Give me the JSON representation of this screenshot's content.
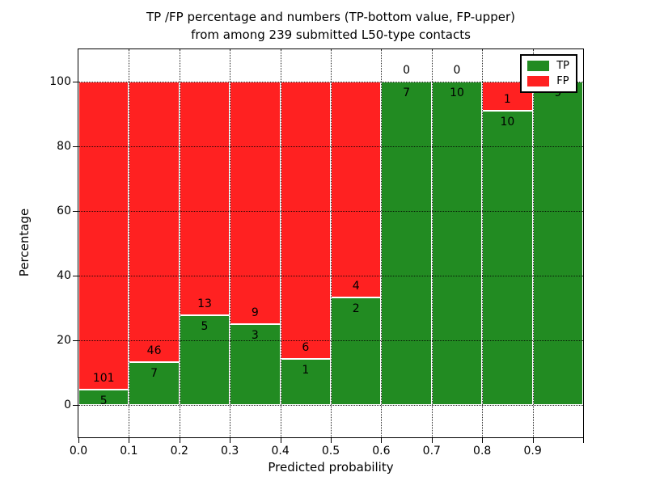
{
  "title": {
    "line1": "TP /FP percentage and numbers (TP-bottom value, FP-upper)",
    "line2": "from among 239 submitted L50-type contacts"
  },
  "axes": {
    "xlabel": "Predicted probability",
    "ylabel": "Percentage",
    "x_tick_labels": [
      "0.0",
      "0.1",
      "0.2",
      "0.3",
      "0.4",
      "0.5",
      "0.6",
      "0.7",
      "0.8",
      "0.9"
    ],
    "y_tick_labels": [
      "0",
      "20",
      "40",
      "60",
      "80",
      "100"
    ],
    "y_tick_values": [
      0,
      20,
      40,
      60,
      80,
      100
    ],
    "xlim": [
      0,
      1
    ],
    "ylim": [
      -10,
      110
    ],
    "grid": "dotted"
  },
  "legend": {
    "items": [
      {
        "label": "TP",
        "color": "#228B22"
      },
      {
        "label": "FP",
        "color": "#FF2121"
      }
    ]
  },
  "chart_data": {
    "type": "bar",
    "stacked": true,
    "normalized_to_percent": true,
    "title": "TP /FP percentage and numbers (TP-bottom value, FP-upper) from among 239 submitted L50-type contacts",
    "xlabel": "Predicted probability",
    "ylabel": "Percentage",
    "bin_edges": [
      0.0,
      0.1,
      0.2,
      0.3,
      0.4,
      0.5,
      0.6,
      0.7,
      0.8,
      0.9,
      1.0
    ],
    "categories": [
      "0.0-0.1",
      "0.1-0.2",
      "0.2-0.3",
      "0.3-0.4",
      "0.4-0.5",
      "0.5-0.6",
      "0.6-0.7",
      "0.7-0.8",
      "0.8-0.9",
      "0.9-1.0"
    ],
    "series": [
      {
        "name": "TP",
        "color": "#228B22",
        "counts": [
          5,
          7,
          5,
          3,
          1,
          2,
          7,
          10,
          10,
          9
        ]
      },
      {
        "name": "FP",
        "color": "#FF2121",
        "counts": [
          101,
          46,
          13,
          9,
          6,
          4,
          0,
          0,
          1,
          0
        ]
      }
    ],
    "tp_percent": [
      4.72,
      13.21,
      27.78,
      25.0,
      14.29,
      33.33,
      100.0,
      100.0,
      90.91,
      100.0
    ],
    "total_contacts": 239,
    "ylim": [
      -10,
      110
    ],
    "legend_position": "upper right"
  }
}
